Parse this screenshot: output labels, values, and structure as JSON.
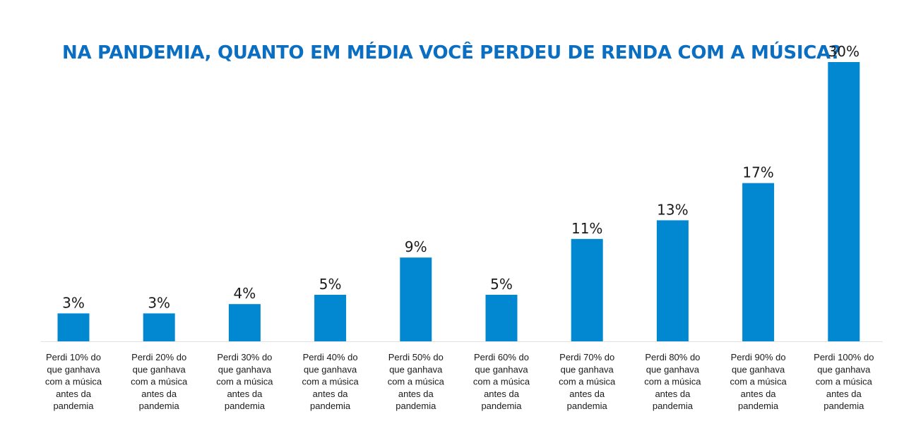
{
  "chart_data": {
    "type": "bar",
    "title": "NA PANDEMIA, QUANTO EM MÉDIA VOCÊ PERDEU DE RENDA COM A MÚSICA?",
    "categories": [
      [
        "Perdi 10% do",
        "que ganhava",
        "com a música",
        "antes da",
        "pandemia"
      ],
      [
        "Perdi 20% do",
        "que ganhava",
        "com a música",
        "antes da",
        "pandemia"
      ],
      [
        "Perdi 30% do",
        "que ganhava",
        "com a música",
        "antes da",
        "pandemia"
      ],
      [
        "Perdi 40% do",
        "que ganhava",
        "com a música",
        "antes da",
        "pandemia"
      ],
      [
        "Perdi 50% do",
        "que ganhava",
        "com a música",
        "antes da",
        "pandemia"
      ],
      [
        "Perdi 60% do",
        "que ganhava",
        "com a música",
        "antes da",
        "pandemia"
      ],
      [
        "Perdi 70% do",
        "que ganhava",
        "com a música",
        "antes da",
        "pandemia"
      ],
      [
        "Perdi 80% do",
        "que ganhava",
        "com a música",
        "antes da",
        "pandemia"
      ],
      [
        "Perdi 90% do",
        "que ganhava",
        "com a música",
        "antes da",
        "pandemia"
      ],
      [
        "Perdi 100% do",
        "que ganhava",
        "com a música",
        "antes da",
        "pandemia"
      ]
    ],
    "values": [
      3,
      3,
      4,
      5,
      9,
      5,
      11,
      13,
      17,
      30
    ],
    "value_labels": [
      "3%",
      "3%",
      "4%",
      "5%",
      "9%",
      "5%",
      "11%",
      "13%",
      "17%",
      "30%"
    ],
    "ylim": [
      0,
      30
    ],
    "grid": false,
    "legend": "none",
    "bar_color": "#0288d1",
    "title_color": "#0a6fc2"
  }
}
